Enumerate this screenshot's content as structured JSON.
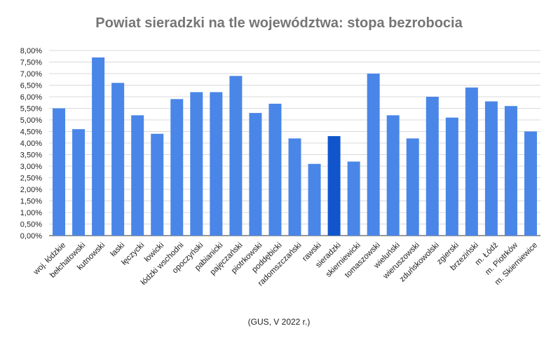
{
  "chart_data": {
    "type": "bar",
    "title": "Powiat sieradzki na tle województwa: stopa bezrobocia",
    "note": "(GUS, V 2022 r.)",
    "xlabel": "",
    "ylabel": "",
    "ylim": [
      0,
      8
    ],
    "y_ticks": [
      0,
      0.5,
      1,
      1.5,
      2,
      2.5,
      3,
      3.5,
      4,
      4.5,
      5,
      5.5,
      6,
      6.5,
      7,
      7.5,
      8
    ],
    "y_tick_labels": [
      "0,00%",
      "0,50%",
      "1,00%",
      "1,50%",
      "2,00%",
      "2,50%",
      "3,00%",
      "3,50%",
      "4,00%",
      "4,50%",
      "5,00%",
      "5,50%",
      "6,00%",
      "6,50%",
      "7,00%",
      "7,50%",
      "8,00%"
    ],
    "grid": true,
    "legend": "none",
    "bar_color": "#4a86e8",
    "highlight_color": "#1155cc",
    "highlight_category": "sieradzki",
    "categories": [
      "woj. łódzkie",
      "bełchatowski",
      "kutnowski",
      "łaski",
      "łęczycki",
      "łowicki",
      "łódzki wschodni",
      "opoczyński",
      "pabianicki",
      "pajęczański",
      "piotrkowski",
      "poddębicki",
      "radomszczański",
      "rawski",
      "sieradzki",
      "skierniewicki",
      "tomaszowski",
      "wieluński",
      "wieruszowski",
      "zduńskowolski",
      "zgierski",
      "brzeziński",
      "m. Łódź",
      "m. Piotrków",
      "m. Skierniewice"
    ],
    "values": [
      5.5,
      4.6,
      7.7,
      6.6,
      5.2,
      4.4,
      5.9,
      6.2,
      6.2,
      6.9,
      5.3,
      5.7,
      4.2,
      3.1,
      4.3,
      3.2,
      7.0,
      5.2,
      4.2,
      6.0,
      5.1,
      6.4,
      5.8,
      5.6,
      4.5
    ]
  }
}
